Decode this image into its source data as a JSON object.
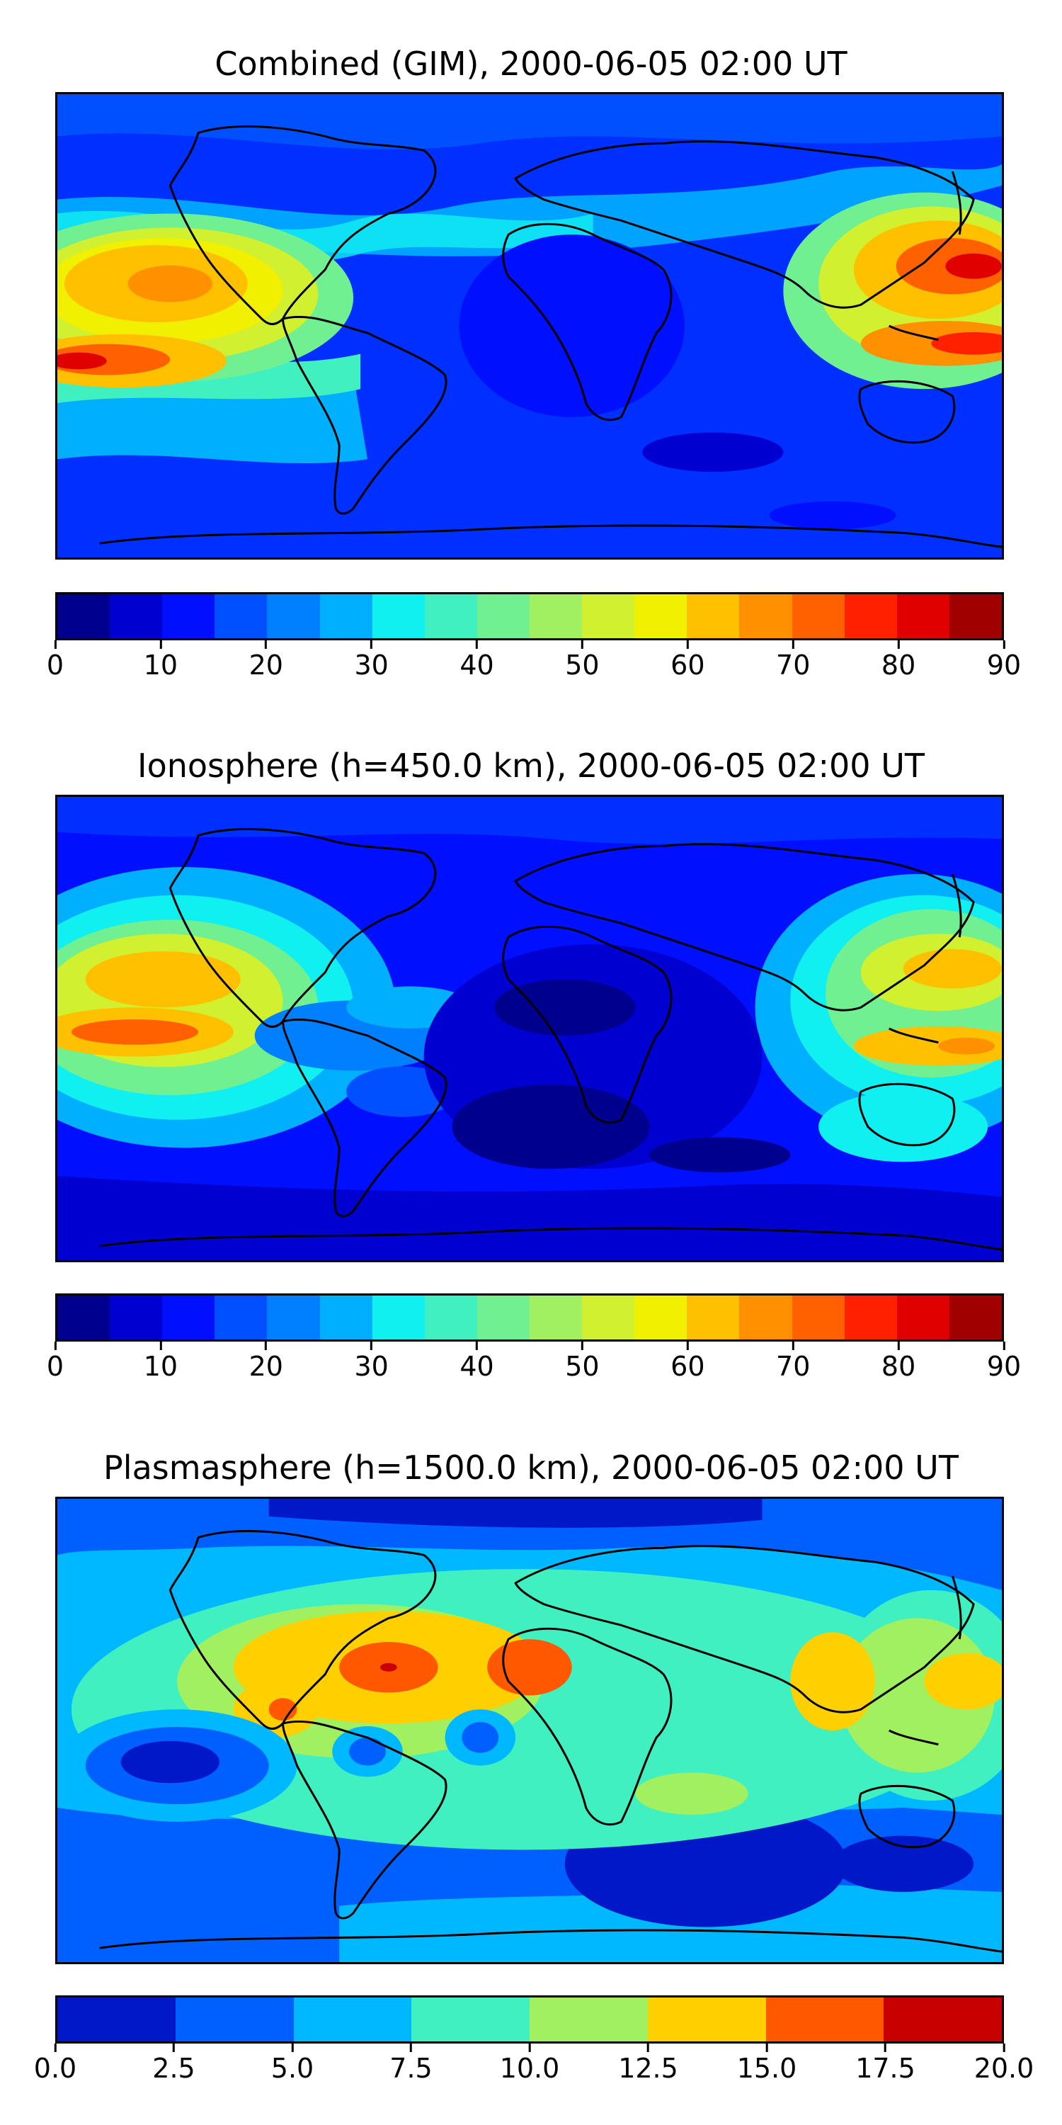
{
  "panels": [
    {
      "title": "Combined (GIM), 2000-06-05 02:00 UT",
      "colorbar": {
        "colors": [
          "#00008f",
          "#0000d0",
          "#0010ff",
          "#0050ff",
          "#0080ff",
          "#00b0ff",
          "#10f0f0",
          "#40f0c0",
          "#70f090",
          "#a0f060",
          "#d0f030",
          "#f0f000",
          "#ffc000",
          "#ff9000",
          "#ff6000",
          "#ff2000",
          "#e00000",
          "#a00000"
        ],
        "ticks": [
          "0",
          "10",
          "20",
          "30",
          "40",
          "50",
          "60",
          "70",
          "80",
          "90"
        ]
      }
    },
    {
      "title": "Ionosphere  (h=450.0 km), 2000-06-05 02:00 UT",
      "colorbar": {
        "colors": [
          "#00008f",
          "#0000d0",
          "#0010ff",
          "#0050ff",
          "#0080ff",
          "#00b0ff",
          "#10f0f0",
          "#40f0c0",
          "#70f090",
          "#a0f060",
          "#d0f030",
          "#f0f000",
          "#ffc000",
          "#ff9000",
          "#ff6000",
          "#ff2000",
          "#e00000",
          "#a00000"
        ],
        "ticks": [
          "0",
          "10",
          "20",
          "30",
          "40",
          "50",
          "60",
          "70",
          "80",
          "90"
        ]
      }
    },
    {
      "title": "Plasmasphere (h=1500.0 km), 2000-06-05 02:00 UT",
      "colorbar": {
        "colors": [
          "#0018c8",
          "#0060ff",
          "#00b8ff",
          "#40f0c0",
          "#a0f060",
          "#ffd000",
          "#ff5800",
          "#c80000"
        ],
        "ticks": [
          "0.0",
          "2.5",
          "5.0",
          "7.5",
          "10.0",
          "12.5",
          "15.0",
          "17.5",
          "20.0"
        ]
      }
    }
  ]
}
